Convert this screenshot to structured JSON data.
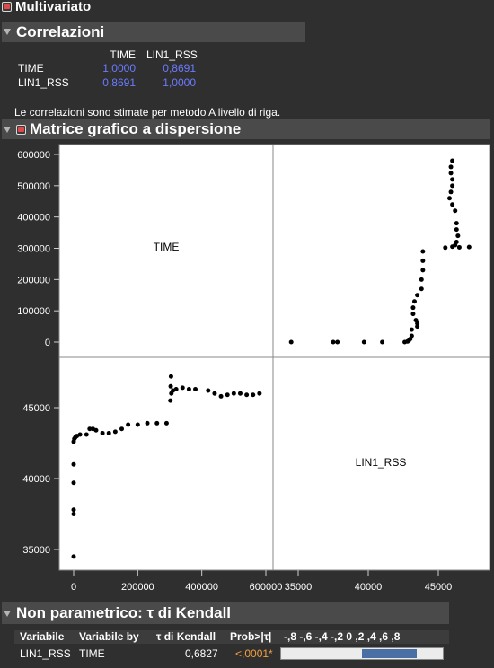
{
  "top": {
    "title": "Multivariato"
  },
  "correlations": {
    "title": "Correlazioni",
    "columns": [
      "TIME",
      "LIN1_RSS"
    ],
    "rows": [
      {
        "label": "TIME",
        "values": [
          "1,0000",
          "0,8691"
        ]
      },
      {
        "label": "LIN1_RSS",
        "values": [
          "0,8691",
          "1,0000"
        ]
      }
    ],
    "note": "Le correlazioni sono stimate per metodo A livello di riga."
  },
  "scatter": {
    "title": "Matrice grafico a dispersione",
    "labels": [
      "TIME",
      "LIN1_RSS"
    ]
  },
  "kendall": {
    "title": "Non parametrico: τ di Kendall",
    "headers": [
      "Variabile",
      "Variabile by",
      "τ di Kendall",
      "Prob>|τ|"
    ],
    "axis_ticks": "-,8 -,6 -,4 -,2  0  ,2  ,4  ,6  ,8",
    "row": {
      "var": "LIN1_RSS",
      "by": "TIME",
      "tau": "0,6827",
      "prob": "<,0001*"
    },
    "tau_value": 0.6827,
    "colors": {
      "prob": "#f0a040",
      "bar_fill": "#4a6fa5"
    }
  },
  "chart_data": {
    "type": "scatter",
    "variables": [
      "TIME",
      "LIN1_RSS"
    ],
    "time_ticks": [
      0,
      200000,
      400000,
      600000
    ],
    "time_lim": [
      -20000,
      620000
    ],
    "lin_ticks": [
      35000,
      40000,
      45000
    ],
    "lin_lim": [
      33500,
      48500
    ],
    "time_tick_labels": [
      "0",
      "200000",
      "400000",
      "600000"
    ],
    "time_ytick_labels": [
      "0",
      "100000",
      "200000",
      "300000",
      "400000",
      "500000",
      "600000"
    ],
    "time_yticks": [
      0,
      100000,
      200000,
      300000,
      400000,
      500000,
      600000
    ],
    "lin_tick_labels": [
      "35000",
      "40000",
      "45000"
    ],
    "points": [
      [
        0,
        34500
      ],
      [
        0,
        37500
      ],
      [
        0,
        37800
      ],
      [
        0,
        39700
      ],
      [
        0,
        41000
      ],
      [
        0,
        42600
      ],
      [
        2000,
        42800
      ],
      [
        5000,
        42900
      ],
      [
        10000,
        43000
      ],
      [
        20000,
        43100
      ],
      [
        40000,
        43100
      ],
      [
        50000,
        43500
      ],
      [
        60000,
        43500
      ],
      [
        70000,
        43400
      ],
      [
        90000,
        43200
      ],
      [
        110000,
        43200
      ],
      [
        130000,
        43300
      ],
      [
        150000,
        43500
      ],
      [
        170000,
        43800
      ],
      [
        200000,
        43800
      ],
      [
        230000,
        43900
      ],
      [
        260000,
        43900
      ],
      [
        290000,
        43900
      ],
      [
        302000,
        45500
      ],
      [
        303000,
        46500
      ],
      [
        304000,
        47200
      ],
      [
        305000,
        46000
      ],
      [
        310000,
        46200
      ],
      [
        320000,
        46300
      ],
      [
        340000,
        46400
      ],
      [
        360000,
        46300
      ],
      [
        380000,
        46300
      ],
      [
        420000,
        46200
      ],
      [
        440000,
        46000
      ],
      [
        460000,
        45800
      ],
      [
        480000,
        45900
      ],
      [
        500000,
        46000
      ],
      [
        520000,
        46000
      ],
      [
        540000,
        45900
      ],
      [
        560000,
        45900
      ],
      [
        580000,
        46000
      ]
    ]
  }
}
